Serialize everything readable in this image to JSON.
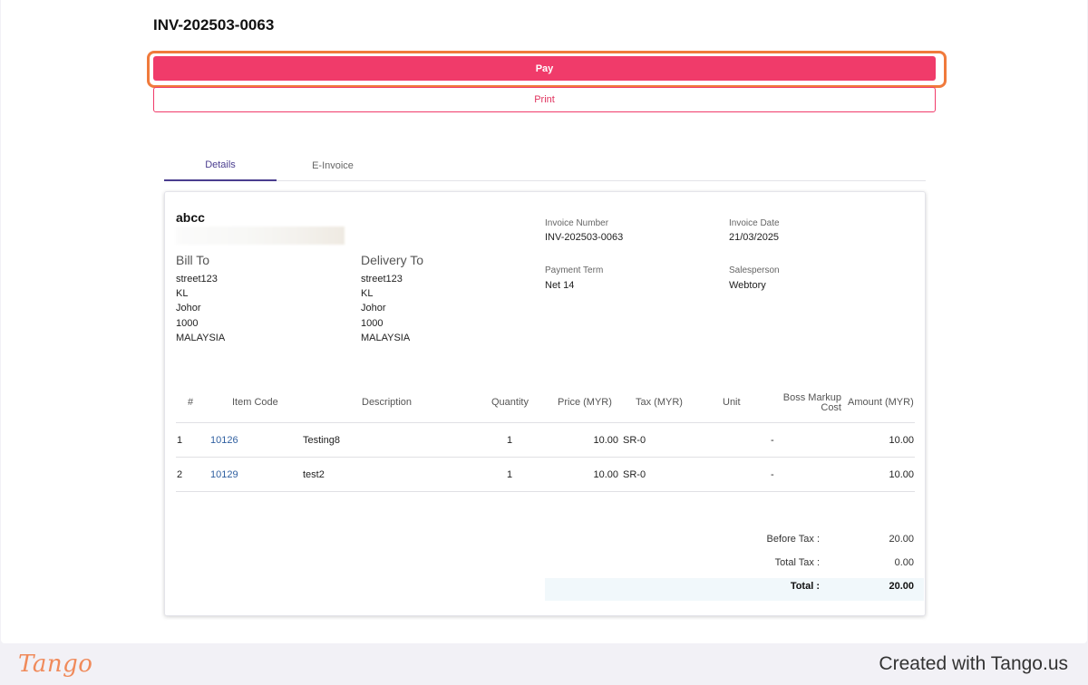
{
  "invoice_title": "INV-202503-0063",
  "buttons": {
    "pay": "Pay",
    "print": "Print"
  },
  "tabs": [
    {
      "label": "Details",
      "active": true
    },
    {
      "label": "E-Invoice",
      "active": false
    }
  ],
  "company": "abcc",
  "bill_to": {
    "heading": "Bill To",
    "lines": [
      "street123",
      "KL",
      "Johor",
      "1000",
      "MALAYSIA"
    ]
  },
  "delivery_to": {
    "heading": "Delivery To",
    "lines": [
      "street123",
      "KL",
      "Johor",
      "1000",
      "MALAYSIA"
    ]
  },
  "meta": {
    "invoice_number_label": "Invoice Number",
    "invoice_number": "INV-202503-0063",
    "invoice_date_label": "Invoice Date",
    "invoice_date": "21/03/2025",
    "payment_term_label": "Payment Term",
    "payment_term": "Net 14",
    "salesperson_label": "Salesperson",
    "salesperson": "Webtory"
  },
  "table": {
    "headers": {
      "num": "#",
      "item_code": "Item Code",
      "description": "Description",
      "quantity": "Quantity",
      "price": "Price (MYR)",
      "tax": "Tax (MYR)",
      "unit": "Unit",
      "boss_markup_1": "Boss Markup",
      "boss_markup_2": "Cost",
      "amount": "Amount (MYR)"
    },
    "rows": [
      {
        "num": "1",
        "item_code": "10126",
        "description": "Testing8",
        "quantity": "1",
        "price": "10.00",
        "tax": "SR-0",
        "unit": "-",
        "amount": "10.00"
      },
      {
        "num": "2",
        "item_code": "10129",
        "description": "test2",
        "quantity": "1",
        "price": "10.00",
        "tax": "SR-0",
        "unit": "-",
        "amount": "10.00"
      }
    ]
  },
  "summary": {
    "before_tax_label": "Before Tax :",
    "before_tax": "20.00",
    "total_tax_label": "Total Tax :",
    "total_tax": "0.00",
    "total_label": "Total :",
    "total": "20.00"
  },
  "footer": {
    "logo_text": "Tango",
    "created_text": "Created with Tango.us"
  },
  "colors": {
    "pay_button": "#f03b6a",
    "highlight": "#f07a3c",
    "active_tab": "#4a3d8f",
    "link": "#2f5fa0"
  }
}
